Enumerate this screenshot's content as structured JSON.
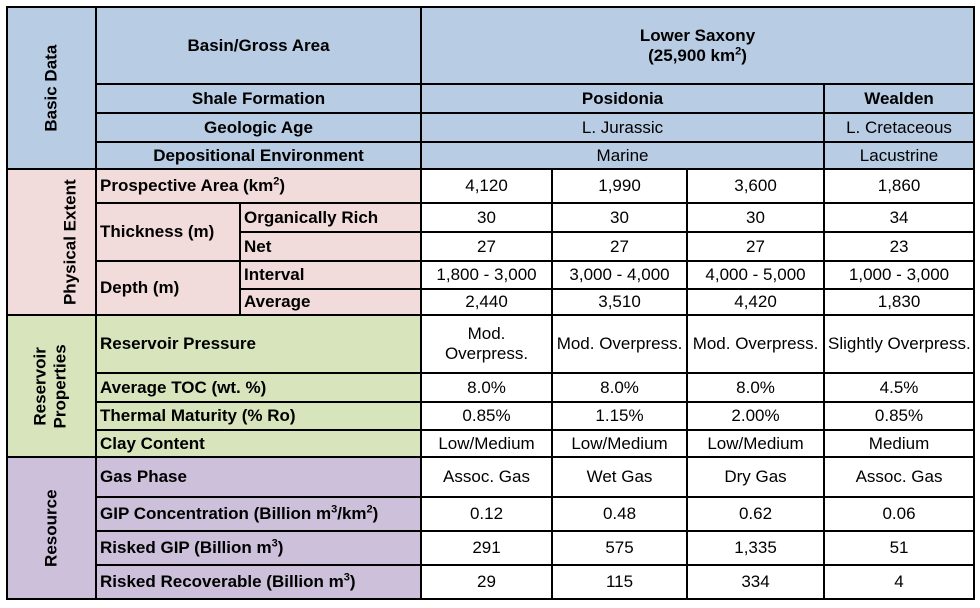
{
  "sections": {
    "basic": "Basic Data",
    "physical": "Physical Extent",
    "reservoir_line1": "Reservoir",
    "reservoir_line2": "Properties",
    "resource": "Resource"
  },
  "header": {
    "basin_label": "Basin/Gross Area",
    "basin_name": "Lower Saxony",
    "basin_area_prefix": "(25,900 km",
    "basin_area_sup": "2",
    "basin_area_suffix": ")",
    "shale_label": "Shale Formation",
    "formations": [
      "Posidonia",
      "Wealden"
    ],
    "age_label": "Geologic Age",
    "ages": [
      "L. Jurassic",
      "L. Cretaceous"
    ],
    "env_label": "Depositional Environment",
    "envs": [
      "Marine",
      "Lacustrine"
    ]
  },
  "physical": {
    "area_label": "Prospective Area (km",
    "area_sup": "2",
    "area_suffix": ")",
    "area": [
      "4,120",
      "1,990",
      "3,600",
      "1,860"
    ],
    "thickness_label": "Thickness (m)",
    "organically_rich_label": "Organically Rich",
    "organically_rich": [
      "30",
      "30",
      "30",
      "34"
    ],
    "net_label": "Net",
    "net": [
      "27",
      "27",
      "27",
      "23"
    ],
    "depth_label": "Depth (m)",
    "interval_label": "Interval",
    "interval": [
      "1,800 - 3,000",
      "3,000 - 4,000",
      "4,000 - 5,000",
      "1,000 - 3,000"
    ],
    "average_label": "Average",
    "average": [
      "2,440",
      "3,510",
      "4,420",
      "1,830"
    ]
  },
  "reservoir": {
    "pressure_label": "Reservoir Pressure",
    "pressure": [
      "Mod. Overpress.",
      "Mod. Overpress.",
      "Mod. Overpress.",
      "Slightly Overpress."
    ],
    "toc_label": "Average TOC (wt. %)",
    "toc": [
      "8.0%",
      "8.0%",
      "8.0%",
      "4.5%"
    ],
    "maturity_label": "Thermal Maturity (% Ro)",
    "maturity": [
      "0.85%",
      "1.15%",
      "2.00%",
      "0.85%"
    ],
    "clay_label": "Clay Content",
    "clay": [
      "Low/Medium",
      "Low/Medium",
      "Low/Medium",
      "Medium"
    ]
  },
  "resource": {
    "gas_phase_label": "Gas Phase",
    "gas_phase": [
      "Assoc. Gas",
      "Wet Gas",
      "Dry Gas",
      "Assoc. Gas"
    ],
    "gip_conc_label_a": "GIP Concentration (Billion m",
    "gip_conc_sup_a": "3",
    "gip_conc_label_b": "/km",
    "gip_conc_sup_b": "2",
    "gip_conc_label_c": ")",
    "gip_conc": [
      "0.12",
      "0.48",
      "0.62",
      "0.06"
    ],
    "risked_gip_label": "Risked GIP (Billion m",
    "risked_gip_sup": "3",
    "risked_gip_suffix": ")",
    "risked_gip": [
      "291",
      "575",
      "1,335",
      "51"
    ],
    "risked_rec_label": "Risked Recoverable (Billion m",
    "risked_rec_sup": "3",
    "risked_rec_suffix": ")",
    "risked_rec": [
      "29",
      "115",
      "334",
      "4"
    ]
  }
}
